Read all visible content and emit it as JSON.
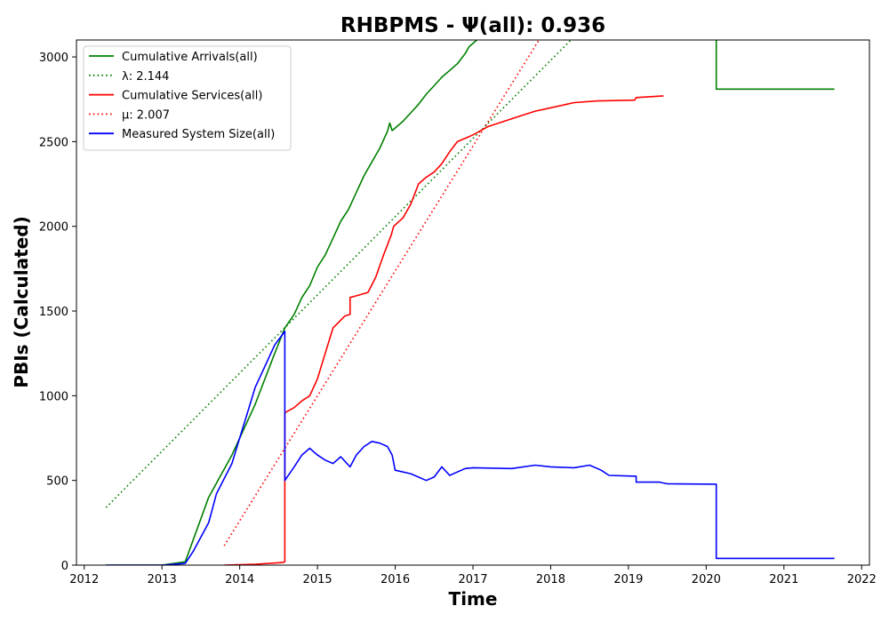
{
  "chart_data": {
    "type": "line",
    "title": "RHBPMS -  Ψ(all): 0.936",
    "xlabel": "Time",
    "ylabel": "PBIs (Calculated)",
    "xlim": [
      2011.9,
      2022.1
    ],
    "ylim": [
      0,
      3100
    ],
    "xticks": [
      2012,
      2013,
      2014,
      2015,
      2016,
      2017,
      2018,
      2019,
      2020,
      2021,
      2022
    ],
    "xtick_labels": [
      "2012",
      "2013",
      "2014",
      "2015",
      "2016",
      "2017",
      "2018",
      "2019",
      "2020",
      "2021",
      "2022"
    ],
    "yticks": [
      0,
      500,
      1000,
      1500,
      2000,
      2500,
      3000
    ],
    "ytick_labels": [
      "0",
      "500",
      "1000",
      "1500",
      "2000",
      "2500",
      "3000"
    ],
    "grid": false,
    "legend_position": "top-left",
    "series": [
      {
        "name": "Cumulative Arrivals(all)",
        "color": "#008000",
        "style": "solid",
        "x": [
          2012.28,
          2013.0,
          2013.3,
          2013.6,
          2013.9,
          2014.2,
          2014.45,
          2014.58,
          2014.7,
          2014.8,
          2014.9,
          2015.0,
          2015.1,
          2015.2,
          2015.3,
          2015.4,
          2015.5,
          2015.6,
          2015.7,
          2015.8,
          2015.9,
          2015.93,
          2015.96,
          2016.0,
          2016.1,
          2016.2,
          2016.3,
          2016.4,
          2016.5,
          2016.6,
          2016.7,
          2016.8,
          2016.9,
          2016.95,
          2017.05
        ],
        "y": [
          0,
          0,
          20,
          400,
          650,
          950,
          1250,
          1400,
          1480,
          1580,
          1650,
          1760,
          1830,
          1930,
          2030,
          2100,
          2200,
          2300,
          2380,
          2460,
          2560,
          2610,
          2565,
          2580,
          2620,
          2670,
          2720,
          2780,
          2830,
          2880,
          2920,
          2960,
          3020,
          3060,
          3100
        ]
      },
      {
        "name": "λ: 2.144",
        "color": "#008000",
        "style": "dotted",
        "x": [
          2012.28,
          2018.26
        ],
        "y": [
          340,
          3100
        ]
      },
      {
        "name": "Cumulative Services(all)",
        "color": "#ff0000",
        "style": "solid",
        "x": [
          2013.8,
          2014.2,
          2014.55,
          2014.58,
          2014.58,
          2014.7,
          2014.8,
          2014.9,
          2015.0,
          2015.1,
          2015.2,
          2015.35,
          2015.42,
          2015.42,
          2015.5,
          2015.65,
          2015.75,
          2015.85,
          2015.95,
          2015.98,
          2016.1,
          2016.2,
          2016.3,
          2016.4,
          2016.5,
          2016.6,
          2016.7,
          2016.8,
          2016.9,
          2017.0,
          2017.2,
          2017.4,
          2017.6,
          2017.8,
          2018.0,
          2018.3,
          2018.6,
          2019.08,
          2019.1,
          2019.45
        ],
        "y": [
          0,
          5,
          15,
          20,
          900,
          930,
          970,
          1000,
          1100,
          1250,
          1400,
          1470,
          1480,
          1580,
          1590,
          1610,
          1700,
          1830,
          1950,
          2000,
          2050,
          2130,
          2250,
          2290,
          2320,
          2370,
          2440,
          2500,
          2520,
          2540,
          2590,
          2620,
          2650,
          2680,
          2700,
          2730,
          2740,
          2745,
          2760,
          2770
        ]
      },
      {
        "name": "μ: 2.007",
        "color": "#ff0000",
        "style": "dotted",
        "x": [
          2013.8,
          2017.85
        ],
        "y": [
          115,
          3100
        ]
      },
      {
        "name": "Measured System Size(all)",
        "color": "#0000ff",
        "style": "solid",
        "x": [
          2012.28,
          2013.0,
          2013.3,
          2013.4,
          2013.6,
          2013.7,
          2013.9,
          2014.0,
          2014.1,
          2014.2,
          2014.3,
          2014.45,
          2014.58,
          2014.58,
          2014.7,
          2014.8,
          2014.9,
          2015.0,
          2015.1,
          2015.2,
          2015.3,
          2015.42,
          2015.5,
          2015.6,
          2015.7,
          2015.8,
          2015.9,
          2015.96,
          2016.0,
          2016.2,
          2016.4,
          2016.5,
          2016.6,
          2016.7,
          2016.9,
          2017.0,
          2017.5,
          2017.8,
          2018.0,
          2018.3,
          2018.5,
          2018.65,
          2018.75,
          2019.1,
          2019.1,
          2019.4,
          2019.5,
          2020.13,
          2020.13,
          2021.65
        ],
        "y": [
          0,
          0,
          10,
          80,
          250,
          420,
          600,
          750,
          900,
          1050,
          1150,
          1300,
          1380,
          500,
          580,
          650,
          690,
          650,
          620,
          600,
          640,
          580,
          650,
          700,
          730,
          720,
          700,
          650,
          560,
          540,
          500,
          520,
          580,
          530,
          570,
          575,
          570,
          590,
          580,
          575,
          590,
          560,
          530,
          525,
          490,
          490,
          480,
          478,
          40,
          40
        ]
      },
      {
        "name": "",
        "color": "#008000",
        "style": "solid",
        "x": [
          2020.13,
          2020.13,
          2021.65
        ],
        "y": [
          3100,
          2810,
          2810
        ]
      }
    ]
  }
}
